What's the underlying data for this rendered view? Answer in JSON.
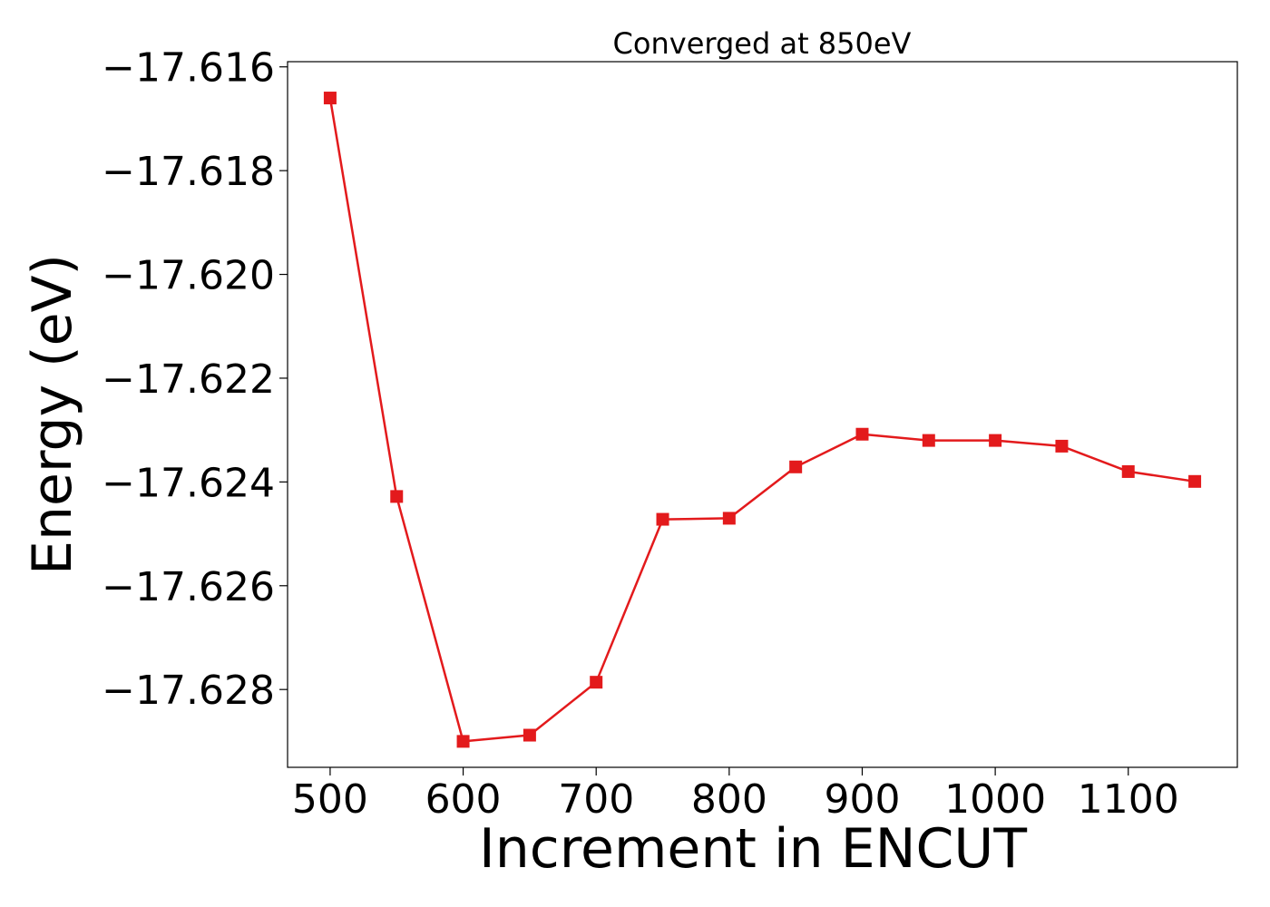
{
  "chart_data": {
    "type": "line",
    "title": "Converged at 850eV",
    "xlabel": "Increment in ENCUT",
    "ylabel": "Energy (eV)",
    "xlim": [
      468,
      1182
    ],
    "ylim": [
      -17.6295,
      -17.6159
    ],
    "x_ticks": [
      500,
      600,
      700,
      800,
      900,
      1000,
      1100
    ],
    "y_ticks": [
      -17.616,
      -17.618,
      -17.62,
      -17.622,
      -17.624,
      -17.626,
      -17.628
    ],
    "y_tick_labels": [
      "−17.616",
      "−17.618",
      "−17.620",
      "−17.622",
      "−17.624",
      "−17.626",
      "−17.628"
    ],
    "grid": false,
    "legend": "none",
    "marker": "square",
    "color": "#e31a1c",
    "series": [
      {
        "x": [
          500,
          550,
          600,
          650,
          700,
          750,
          800,
          850,
          900,
          950,
          1000,
          1050,
          1100,
          1150
        ],
        "y": [
          -17.6166,
          -17.62428,
          -17.629,
          -17.62888,
          -17.62786,
          -17.62472,
          -17.6247,
          -17.62371,
          -17.62308,
          -17.6232,
          -17.6232,
          -17.62331,
          -17.6238,
          -17.62399
        ]
      }
    ]
  }
}
